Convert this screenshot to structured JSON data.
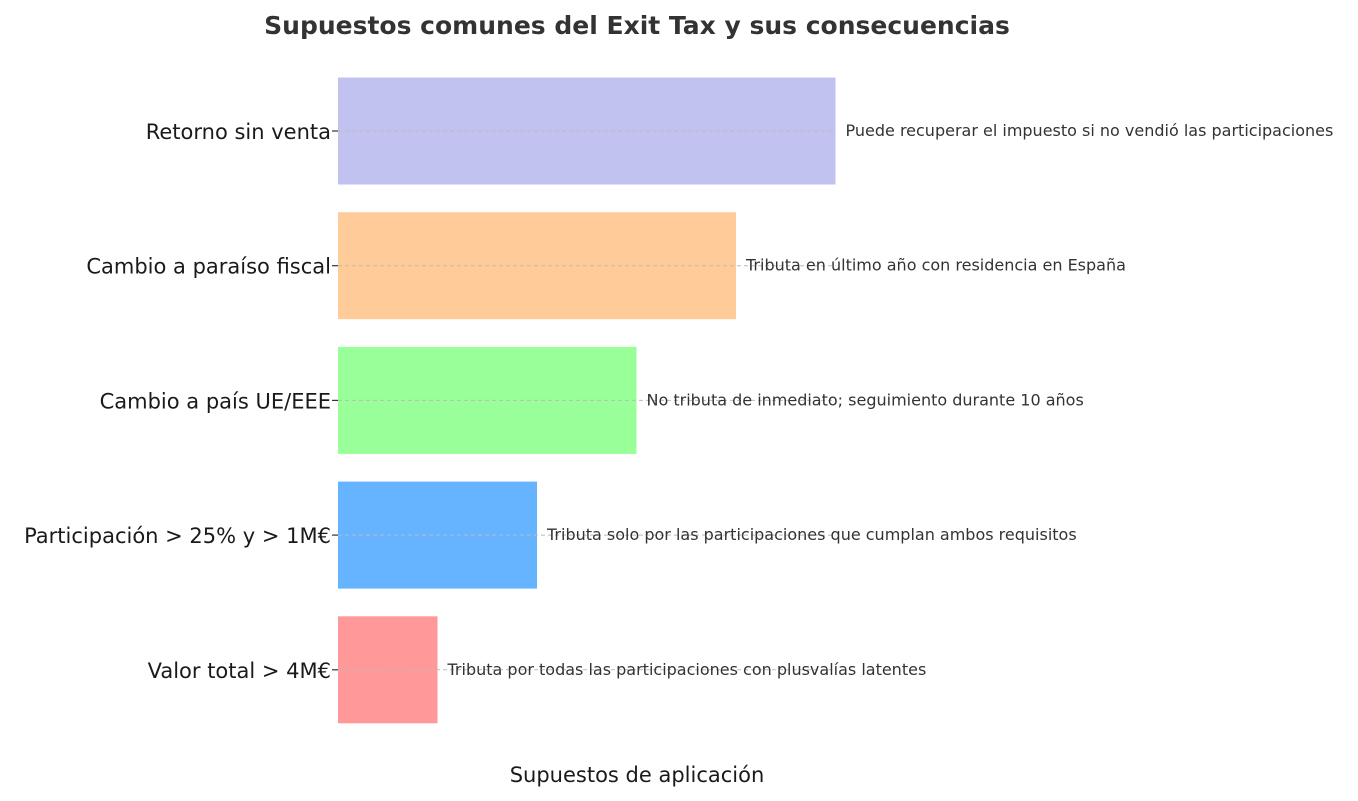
{
  "chart_data": {
    "type": "bar",
    "orientation": "horizontal",
    "title": "Supuestos comunes del Exit Tax y sus consecuencias",
    "xlabel": "Supuestos de aplicación",
    "ylabel": "",
    "categories": [
      "Retorno sin venta",
      "Cambio a paraíso fiscal",
      "Cambio a país UE/EEE",
      "Participación > 25% y > 1M€",
      "Valor total > 4M€"
    ],
    "values": [
      5,
      4,
      3,
      2,
      1
    ],
    "xlim": [
      0,
      5
    ],
    "annotations": [
      "Puede recuperar el impuesto si no vendió las participaciones",
      "Tributa en último año con residencia en España",
      "No tributa de inmediato; seguimiento durante 10 años",
      "Tributa solo por las participaciones que cumplan ambos requisitos",
      "Tributa por todas las participaciones con plusvalías latentes"
    ],
    "colors": [
      "#c1c2f0",
      "#ffcc99",
      "#99ff99",
      "#66b3ff",
      "#ff9999"
    ],
    "grid": true,
    "x_ticks_visible": false
  }
}
